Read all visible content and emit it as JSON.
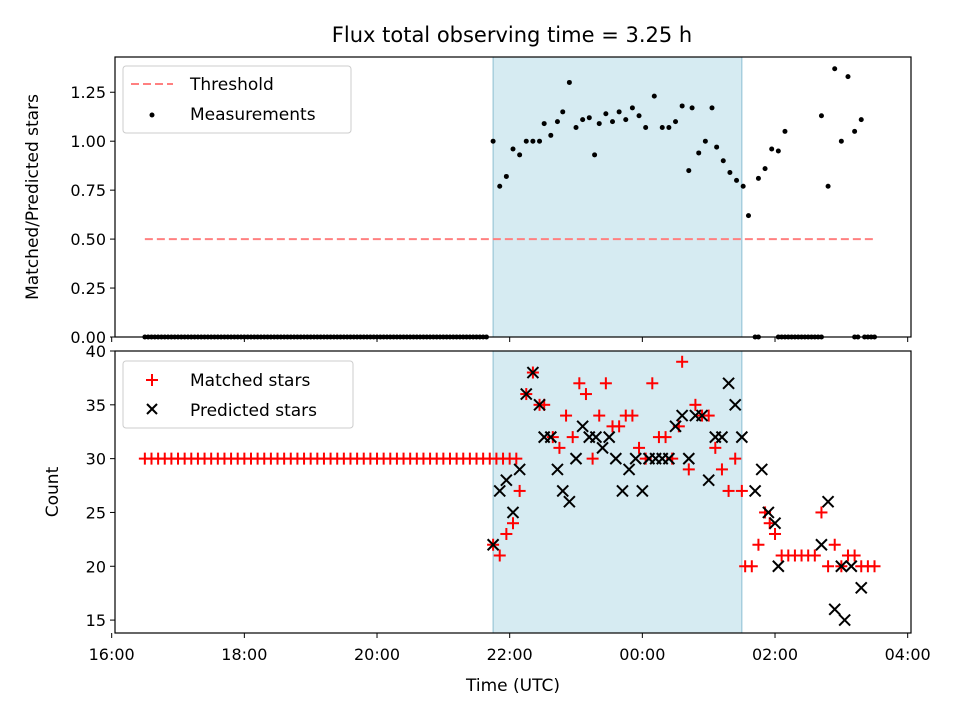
{
  "chart_data": [
    {
      "type": "scatter",
      "title": "Flux total observing time = 3.25 h",
      "xlabel": "",
      "ylabel": "Matched/Predicted stars",
      "ylim": [
        0,
        1.43
      ],
      "yticks": [
        "0.00",
        "0.25",
        "0.50",
        "0.75",
        "1.00",
        "1.25"
      ],
      "ytick_values": [
        0,
        0.25,
        0.5,
        0.75,
        1.0,
        1.25
      ],
      "xlim": [
        -7.95,
        4.05
      ],
      "shaded_region": [
        -2.25,
        1.5
      ],
      "threshold": {
        "label": "Threshold",
        "value": 0.5,
        "x_start": -7.5,
        "x_end": 3.5,
        "color": "#ff8080"
      },
      "series": [
        {
          "name": "Measurements",
          "color": "#000000",
          "points": [
            [
              -2.25,
              1.0
            ],
            [
              -2.15,
              0.77
            ],
            [
              -2.05,
              0.82
            ],
            [
              -1.95,
              0.96
            ],
            [
              -1.85,
              0.93
            ],
            [
              -1.75,
              1.0
            ],
            [
              -1.65,
              1.0
            ],
            [
              -1.55,
              1.0
            ],
            [
              -1.48,
              1.09
            ],
            [
              -1.38,
              1.03
            ],
            [
              -1.28,
              1.1
            ],
            [
              -1.2,
              1.15
            ],
            [
              -1.1,
              1.3
            ],
            [
              -1.0,
              1.07
            ],
            [
              -0.9,
              1.11
            ],
            [
              -0.8,
              1.12
            ],
            [
              -0.72,
              0.93
            ],
            [
              -0.65,
              1.09
            ],
            [
              -0.55,
              1.14
            ],
            [
              -0.45,
              1.1
            ],
            [
              -0.35,
              1.15
            ],
            [
              -0.25,
              1.11
            ],
            [
              -0.15,
              1.17
            ],
            [
              -0.05,
              1.13
            ],
            [
              0.05,
              1.07
            ],
            [
              0.18,
              1.23
            ],
            [
              0.3,
              1.07
            ],
            [
              0.4,
              1.07
            ],
            [
              0.5,
              1.1
            ],
            [
              0.6,
              1.18
            ],
            [
              0.7,
              0.85
            ],
            [
              0.75,
              1.17
            ],
            [
              0.85,
              0.94
            ],
            [
              0.95,
              1.0
            ],
            [
              1.05,
              1.17
            ],
            [
              1.12,
              0.97
            ],
            [
              1.22,
              0.9
            ],
            [
              1.32,
              0.84
            ],
            [
              1.42,
              0.8
            ],
            [
              1.52,
              0.77
            ],
            [
              1.6,
              0.62
            ],
            [
              1.75,
              0.81
            ],
            [
              1.85,
              0.86
            ],
            [
              1.95,
              0.96
            ],
            [
              2.05,
              0.95
            ],
            [
              2.15,
              1.05
            ],
            [
              2.7,
              1.13
            ],
            [
              2.8,
              0.77
            ],
            [
              2.9,
              1.37
            ],
            [
              3.0,
              1.0
            ],
            [
              3.1,
              1.33
            ],
            [
              3.2,
              1.05
            ],
            [
              3.3,
              1.11
            ]
          ],
          "zero_points_x_ranges": [
            [
              -7.5,
              -2.35
            ],
            [
              1.7,
              1.75
            ],
            [
              2.05,
              2.7
            ],
            [
              3.2,
              3.25
            ],
            [
              3.35,
              3.5
            ]
          ]
        }
      ]
    },
    {
      "type": "scatter",
      "title": "",
      "xlabel": "Time (UTC)",
      "ylabel": "Count",
      "ylim": [
        13.8,
        40
      ],
      "yticks": [
        "15",
        "20",
        "25",
        "30",
        "35",
        "40"
      ],
      "ytick_values": [
        15,
        20,
        25,
        30,
        35,
        40
      ],
      "xlim": [
        -7.95,
        4.05
      ],
      "xticks": [
        "16:00",
        "18:00",
        "20:00",
        "22:00",
        "00:00",
        "02:00",
        "04:00"
      ],
      "xtick_values": [
        -8,
        -6,
        -4,
        -2,
        0,
        2,
        4
      ],
      "shaded_region": [
        -2.25,
        1.5
      ],
      "series": [
        {
          "name": "Matched stars",
          "color": "#ff0000",
          "marker": "plus",
          "constant_run": {
            "x_start": -7.5,
            "x_end": -1.9,
            "step": 0.1,
            "value": 30
          },
          "points": [
            [
              -2.25,
              22
            ],
            [
              -2.15,
              21
            ],
            [
              -2.05,
              23
            ],
            [
              -1.95,
              24
            ],
            [
              -1.85,
              27
            ],
            [
              -1.75,
              36
            ],
            [
              -1.65,
              38
            ],
            [
              -1.55,
              35
            ],
            [
              -1.48,
              35
            ],
            [
              -1.35,
              32
            ],
            [
              -1.25,
              31
            ],
            [
              -1.15,
              34
            ],
            [
              -1.05,
              32
            ],
            [
              -0.95,
              37
            ],
            [
              -0.85,
              36
            ],
            [
              -0.75,
              30
            ],
            [
              -0.65,
              34
            ],
            [
              -0.55,
              37
            ],
            [
              -0.45,
              33
            ],
            [
              -0.35,
              33
            ],
            [
              -0.25,
              34
            ],
            [
              -0.15,
              34
            ],
            [
              -0.05,
              31
            ],
            [
              0.05,
              30
            ],
            [
              0.15,
              37
            ],
            [
              0.25,
              32
            ],
            [
              0.35,
              32
            ],
            [
              0.45,
              30
            ],
            [
              0.55,
              33
            ],
            [
              0.6,
              39
            ],
            [
              0.7,
              29
            ],
            [
              0.8,
              35
            ],
            [
              0.9,
              34
            ],
            [
              1.0,
              34
            ],
            [
              1.1,
              31
            ],
            [
              1.2,
              29
            ],
            [
              1.3,
              27
            ],
            [
              1.4,
              30
            ],
            [
              1.5,
              27
            ],
            [
              1.55,
              20
            ],
            [
              1.65,
              20
            ],
            [
              1.75,
              22
            ],
            [
              1.85,
              25
            ],
            [
              1.92,
              24
            ],
            [
              2.0,
              23
            ],
            [
              2.1,
              21
            ],
            [
              2.2,
              21
            ],
            [
              2.3,
              21
            ],
            [
              2.4,
              21
            ],
            [
              2.5,
              21
            ],
            [
              2.6,
              21
            ],
            [
              2.7,
              25
            ],
            [
              2.8,
              20
            ],
            [
              2.9,
              22
            ],
            [
              3.0,
              20
            ],
            [
              3.1,
              21
            ],
            [
              3.2,
              21
            ],
            [
              3.3,
              20
            ],
            [
              3.4,
              20
            ],
            [
              3.5,
              20
            ]
          ]
        },
        {
          "name": "Predicted stars",
          "color": "#000000",
          "marker": "x",
          "points": [
            [
              -2.25,
              22
            ],
            [
              -2.15,
              27
            ],
            [
              -2.05,
              28
            ],
            [
              -1.95,
              25
            ],
            [
              -1.85,
              29
            ],
            [
              -1.75,
              36
            ],
            [
              -1.65,
              38
            ],
            [
              -1.55,
              35
            ],
            [
              -1.48,
              32
            ],
            [
              -1.38,
              32
            ],
            [
              -1.28,
              29
            ],
            [
              -1.2,
              27
            ],
            [
              -1.1,
              26
            ],
            [
              -1.0,
              30
            ],
            [
              -0.9,
              33
            ],
            [
              -0.8,
              32
            ],
            [
              -0.7,
              32
            ],
            [
              -0.6,
              31
            ],
            [
              -0.5,
              32
            ],
            [
              -0.4,
              30
            ],
            [
              -0.3,
              27
            ],
            [
              -0.2,
              29
            ],
            [
              -0.1,
              30
            ],
            [
              0.0,
              27
            ],
            [
              0.1,
              30
            ],
            [
              0.2,
              30
            ],
            [
              0.3,
              30
            ],
            [
              0.4,
              30
            ],
            [
              0.5,
              33
            ],
            [
              0.6,
              34
            ],
            [
              0.7,
              30
            ],
            [
              0.8,
              34
            ],
            [
              0.9,
              34
            ],
            [
              1.0,
              28
            ],
            [
              1.1,
              32
            ],
            [
              1.2,
              32
            ],
            [
              1.3,
              37
            ],
            [
              1.4,
              35
            ],
            [
              1.5,
              32
            ],
            [
              1.7,
              27
            ],
            [
              1.8,
              29
            ],
            [
              1.9,
              25
            ],
            [
              2.0,
              24
            ],
            [
              2.05,
              20
            ],
            [
              2.7,
              22
            ],
            [
              2.8,
              26
            ],
            [
              2.9,
              16
            ],
            [
              3.0,
              20
            ],
            [
              3.05,
              15
            ],
            [
              3.15,
              20
            ],
            [
              3.3,
              18
            ]
          ]
        }
      ]
    }
  ]
}
